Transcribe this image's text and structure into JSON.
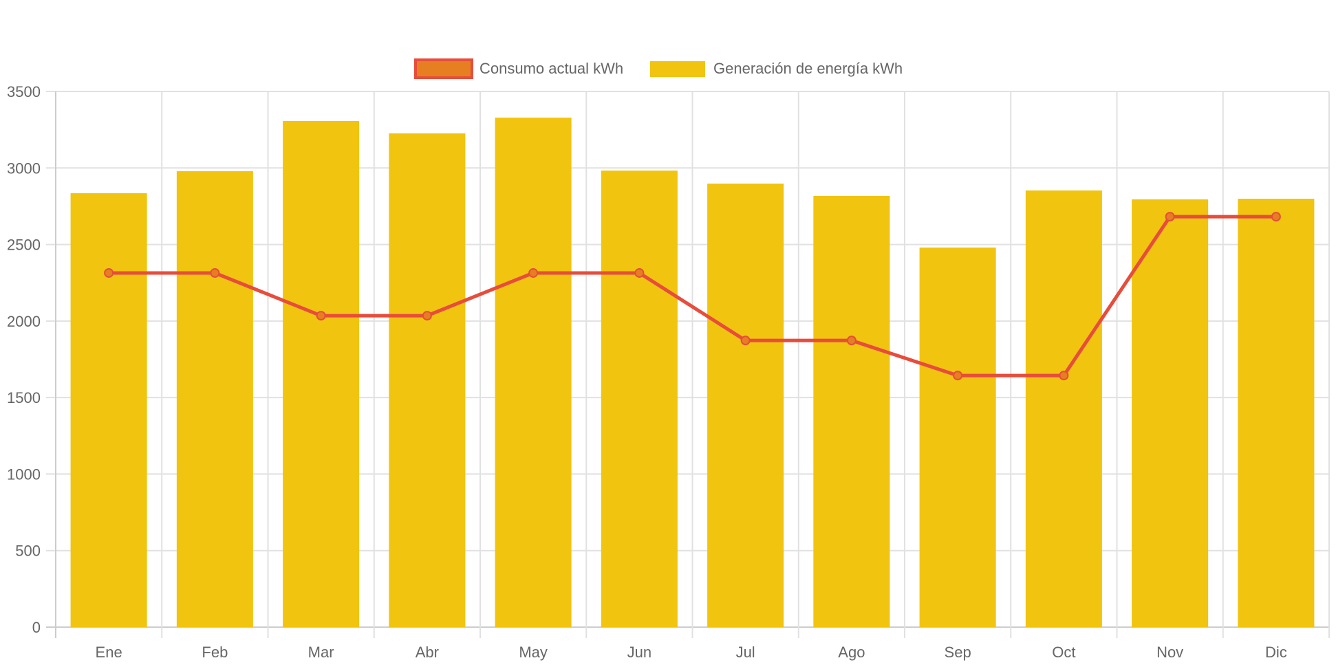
{
  "chart_data": {
    "type": "bar",
    "title": "",
    "xlabel": "",
    "ylabel": "",
    "categories": [
      "Ene",
      "Feb",
      "Mar",
      "Abr",
      "May",
      "Jun",
      "Jul",
      "Ago",
      "Sep",
      "Oct",
      "Nov",
      "Dic"
    ],
    "ylim": [
      0,
      3500
    ],
    "yticks": [
      0,
      500,
      1000,
      1500,
      2000,
      2500,
      3000,
      3500
    ],
    "grid": true,
    "legend_position": "top-center",
    "series": [
      {
        "name": "Consumo actual kWh",
        "type": "line",
        "color": "#e74c3c",
        "point_fill": "#e67e22",
        "values": [
          2314,
          2314,
          2035,
          2035,
          2314,
          2314,
          1873,
          1873,
          1644,
          1644,
          2682,
          2682
        ]
      },
      {
        "name": "Generación de energía kWh",
        "type": "bar",
        "color": "#f1c40f",
        "values": [
          2835,
          2979,
          3307,
          3226,
          3329,
          2983,
          2898,
          2817,
          2480,
          2853,
          2795,
          2799
        ]
      }
    ]
  },
  "legend": {
    "items": [
      {
        "label": "Consumo actual kWh",
        "fill": "#e67e22",
        "border": "#e74c3c"
      },
      {
        "label": "Generación de energía kWh",
        "fill": "#f1c40f",
        "border": "#f1c40f"
      }
    ]
  },
  "colors": {
    "grid": "#e1e1e1",
    "axis": "#cccccc",
    "text": "#666666"
  }
}
